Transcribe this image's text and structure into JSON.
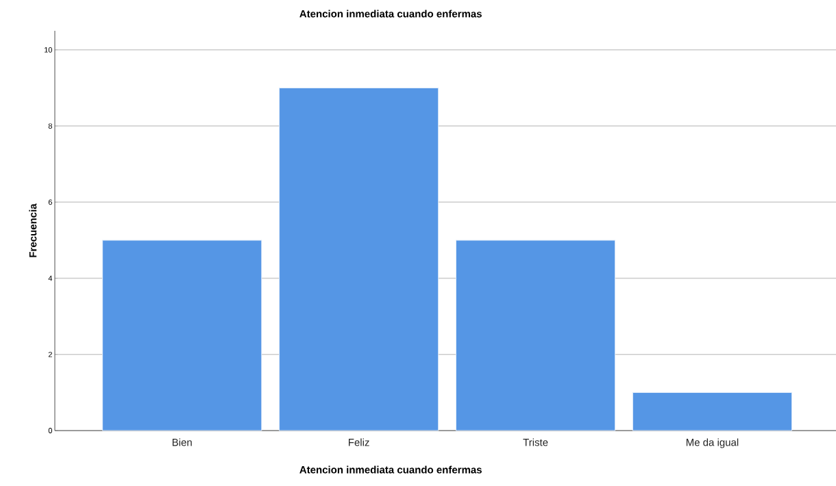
{
  "chart_data": {
    "type": "bar",
    "title": "Atencion inmediata cuando enfermas",
    "xlabel": "Atencion inmediata cuando enfermas",
    "ylabel": "Frecuencia",
    "categories": [
      "Bien",
      "Feliz",
      "Triste",
      "Me da igual"
    ],
    "values": [
      5,
      9,
      5,
      1
    ],
    "color": "#5596e5",
    "ylim": [
      0,
      10.5
    ],
    "yticks": [
      0,
      2,
      4,
      6,
      8,
      10
    ],
    "grid": "y"
  }
}
